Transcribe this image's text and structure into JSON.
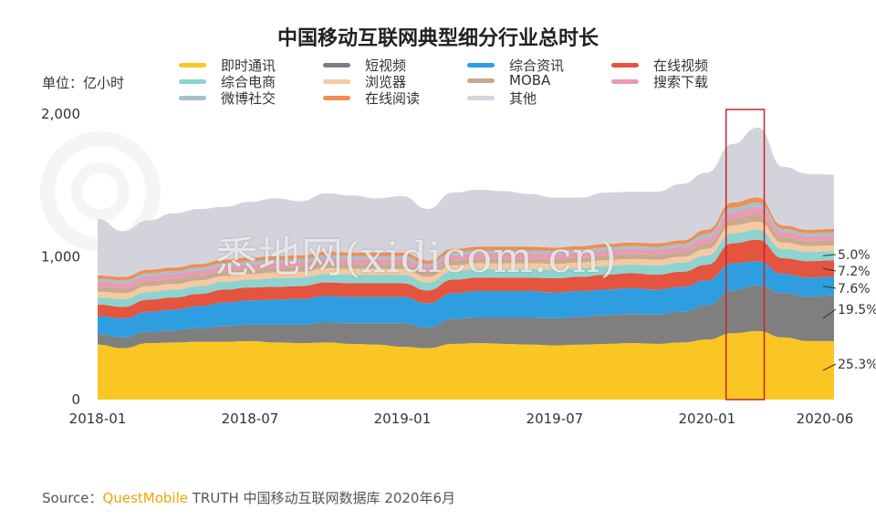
{
  "title": "中国移动互联网典型细分行业总时长",
  "unit_label": "单位：亿小时",
  "watermark": "悉地网(xidicom.cn)",
  "source": {
    "prefix": "Source：",
    "brand": "QuestMobile",
    "rest": " TRUTH 中国移动互联网数据库 2020年6月"
  },
  "legend": [
    {
      "name": "即时通讯",
      "color": "#f9c623"
    },
    {
      "name": "短视频",
      "color": "#7f7f7f"
    },
    {
      "name": "综合资讯",
      "color": "#2e9ee0"
    },
    {
      "name": "在线视频",
      "color": "#e5543f"
    },
    {
      "name": "综合电商",
      "color": "#8dd3d0"
    },
    {
      "name": "浏览器",
      "color": "#f6c9a0"
    },
    {
      "name": "MOBA",
      "color": "#c9aa90"
    },
    {
      "name": "搜索下载",
      "color": "#e99ab5"
    },
    {
      "name": "微博社交",
      "color": "#a5c2c7"
    },
    {
      "name": "在线阅读",
      "color": "#ef8e55"
    },
    {
      "name": "其他",
      "color": "#d3d3dc"
    }
  ],
  "chart_data": {
    "type": "area",
    "stacked": true,
    "x": [
      "2018-01",
      "2018-02",
      "2018-03",
      "2018-04",
      "2018-05",
      "2018-06",
      "2018-07",
      "2018-08",
      "2018-09",
      "2018-10",
      "2018-11",
      "2018-12",
      "2019-01",
      "2019-02",
      "2019-03",
      "2019-04",
      "2019-05",
      "2019-06",
      "2019-07",
      "2019-08",
      "2019-09",
      "2019-10",
      "2019-11",
      "2019-12",
      "2020-01",
      "2020-02",
      "2020-03",
      "2020-04",
      "2020-05",
      "2020-06"
    ],
    "x_tick_labels": [
      "2018-01",
      "2018-07",
      "2019-01",
      "2019-07",
      "2020-01",
      "2020-06"
    ],
    "y_tick_labels": [
      "0",
      "1,000",
      "2,000"
    ],
    "ylim": [
      0,
      2000
    ],
    "grid": false,
    "series": [
      {
        "name": "即时通讯",
        "color": "#f9c623",
        "values": [
          385,
          360,
          395,
          400,
          405,
          405,
          410,
          400,
          395,
          400,
          390,
          385,
          370,
          360,
          390,
          395,
          390,
          385,
          380,
          385,
          390,
          395,
          390,
          400,
          420,
          465,
          480,
          435,
          410,
          410
        ]
      },
      {
        "name": "短视频",
        "color": "#7f7f7f",
        "values": [
          75,
          75,
          80,
          85,
          95,
          110,
          115,
          125,
          130,
          140,
          145,
          150,
          165,
          145,
          175,
          180,
          185,
          190,
          190,
          195,
          200,
          205,
          205,
          215,
          240,
          300,
          320,
          310,
          310,
          320
        ]
      },
      {
        "name": "综合资讯",
        "color": "#2e9ee0",
        "values": [
          125,
          135,
          140,
          145,
          155,
          165,
          170,
          175,
          180,
          185,
          185,
          185,
          185,
          170,
          180,
          185,
          185,
          185,
          180,
          180,
          180,
          180,
          175,
          175,
          175,
          190,
          170,
          135,
          135,
          130
        ]
      },
      {
        "name": "在线视频",
        "color": "#e5543f",
        "values": [
          80,
          80,
          85,
          85,
          85,
          90,
          90,
          90,
          90,
          95,
          95,
          95,
          95,
          90,
          95,
          95,
          95,
          95,
          100,
          100,
          105,
          105,
          105,
          105,
          110,
          140,
          150,
          110,
          115,
          115
        ]
      },
      {
        "name": "综合电商",
        "color": "#8dd3d0",
        "values": [
          50,
          55,
          55,
          55,
          55,
          55,
          55,
          60,
          60,
          60,
          60,
          60,
          60,
          55,
          60,
          60,
          60,
          60,
          60,
          60,
          60,
          60,
          65,
          65,
          65,
          70,
          70,
          65,
          65,
          65
        ]
      },
      {
        "name": "浏览器",
        "color": "#f6c9a0",
        "values": [
          40,
          40,
          40,
          40,
          40,
          40,
          40,
          40,
          40,
          40,
          40,
          40,
          40,
          40,
          40,
          40,
          40,
          40,
          40,
          40,
          40,
          40,
          40,
          40,
          45,
          55,
          55,
          45,
          40,
          40
        ]
      },
      {
        "name": "MOBA",
        "color": "#c9aa90",
        "values": [
          35,
          35,
          35,
          35,
          35,
          35,
          35,
          35,
          35,
          35,
          35,
          35,
          35,
          35,
          35,
          35,
          35,
          35,
          35,
          35,
          35,
          35,
          35,
          35,
          40,
          50,
          55,
          40,
          35,
          35
        ]
      },
      {
        "name": "搜索下载",
        "color": "#e99ab5",
        "values": [
          35,
          35,
          35,
          35,
          35,
          35,
          35,
          35,
          35,
          35,
          35,
          35,
          35,
          35,
          35,
          35,
          35,
          35,
          35,
          35,
          35,
          35,
          35,
          35,
          40,
          45,
          50,
          35,
          35,
          35
        ]
      },
      {
        "name": "微博社交",
        "color": "#a5c2c7",
        "values": [
          20,
          20,
          20,
          20,
          20,
          20,
          20,
          20,
          20,
          20,
          20,
          20,
          20,
          20,
          20,
          20,
          20,
          20,
          20,
          20,
          20,
          20,
          20,
          20,
          25,
          30,
          30,
          20,
          20,
          20
        ]
      },
      {
        "name": "在线阅读",
        "color": "#ef8e55",
        "values": [
          25,
          25,
          25,
          25,
          25,
          25,
          25,
          25,
          25,
          25,
          25,
          25,
          25,
          25,
          25,
          25,
          25,
          25,
          25,
          25,
          25,
          25,
          25,
          25,
          30,
          35,
          35,
          25,
          25,
          25
        ]
      },
      {
        "name": "其他",
        "color": "#d3d3dc",
        "values": [
          395,
          320,
          345,
          380,
          385,
          370,
          390,
          405,
          380,
          410,
          400,
          380,
          395,
          360,
          395,
          400,
          390,
          370,
          350,
          340,
          360,
          355,
          360,
          395,
          400,
          410,
          490,
          410,
          390,
          380
        ]
      }
    ],
    "annotations": [
      "5.0%",
      "7.2%",
      "7.6%",
      "19.5%",
      "25.3%"
    ],
    "highlight_range": [
      "2020-02",
      "2020-03"
    ],
    "highlight_color": "#c0282d"
  }
}
